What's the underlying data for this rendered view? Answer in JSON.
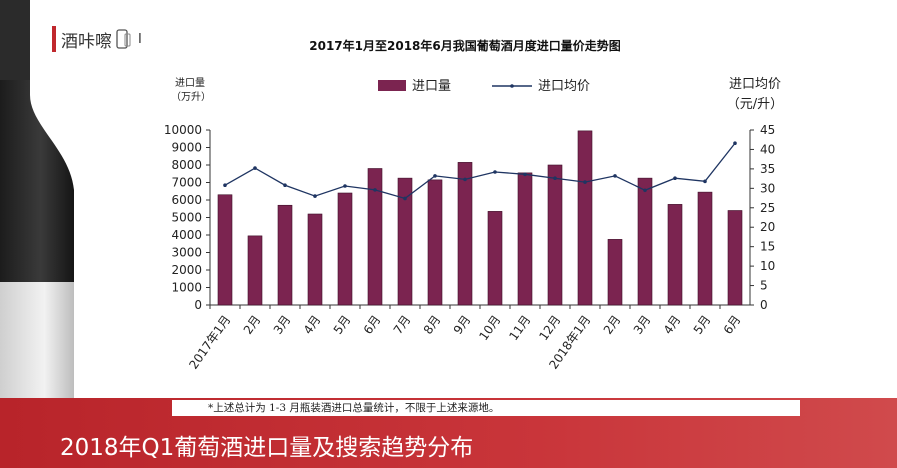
{
  "brand": {
    "name": "酒咔嚓",
    "suffix": "I"
  },
  "slide": {
    "title": "2018年Q1葡萄酒进口量及搜索趋势分布"
  },
  "note": "*上述总计为 1-3 月瓶装酒进口总量统计，不限于上述来源地。",
  "colors": {
    "bar": "#7b2450",
    "line": "#1f3562",
    "footer": "#c0282d"
  },
  "chart_data": {
    "type": "bar",
    "title": "2017年1月至2018年6月我国葡萄酒月度进口量价走势图",
    "categories": [
      "2017年1月",
      "2月",
      "3月",
      "4月",
      "5月",
      "6月",
      "7月",
      "8月",
      "9月",
      "10月",
      "11月",
      "12月",
      "2018年1月",
      "2月",
      "3月",
      "4月",
      "5月",
      "6月"
    ],
    "series": [
      {
        "name": "进口量",
        "type": "bar",
        "axis": "left",
        "values": [
          6300,
          3950,
          5700,
          5200,
          6400,
          7800,
          7250,
          7150,
          8150,
          5350,
          7550,
          8000,
          9950,
          3750,
          7250,
          5750,
          6450,
          5400
        ]
      },
      {
        "name": "进口均价",
        "type": "line",
        "axis": "right",
        "values": [
          30.8,
          35.2,
          30.8,
          28.0,
          30.6,
          29.6,
          27.4,
          33.2,
          32.3,
          34.2,
          33.6,
          32.6,
          31.6,
          33.2,
          29.5,
          32.6,
          31.8,
          41.6
        ]
      }
    ],
    "y_left": {
      "label_line1": "进口量",
      "label_line2": "（万升）",
      "ylim": [
        0,
        10000
      ],
      "ticks": [
        "0",
        "1000",
        "2000",
        "3000",
        "4000",
        "5000",
        "6000",
        "7000",
        "8000",
        "9000",
        "10000"
      ]
    },
    "y_right": {
      "label_line1": "进口均价",
      "label_line2": "（元/升）",
      "ylim": [
        0,
        45
      ],
      "ticks": [
        "0",
        "5",
        "10",
        "15",
        "20",
        "25",
        "30",
        "35",
        "40",
        "45"
      ]
    },
    "legend_position": "top",
    "grid": false
  }
}
